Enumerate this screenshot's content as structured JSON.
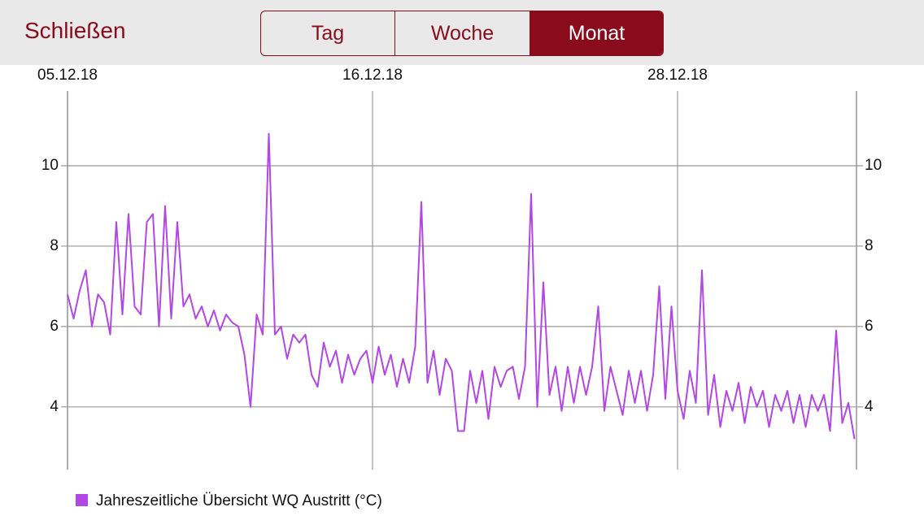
{
  "header": {
    "close": "Schließen",
    "segments": [
      "Tag",
      "Woche",
      "Monat"
    ],
    "selected": 2
  },
  "chart_data": {
    "type": "line",
    "xlim": [
      0,
      129.33
    ],
    "xticks": [
      {
        "value": 0,
        "label": "05.12.18"
      },
      {
        "value": 50,
        "label": "16.12.18"
      },
      {
        "value": 100,
        "label": "28.12.18"
      }
    ],
    "ylim": [
      2.44,
      11.86
    ],
    "yticks": [
      4,
      6,
      8,
      10
    ],
    "grid": true,
    "series": [
      {
        "name": "Jahreszeitliche Übersicht WQ Austritt (°C)",
        "color": "#b347e6",
        "values": [
          6.8,
          6.2,
          6.9,
          7.4,
          6.0,
          6.8,
          6.6,
          5.8,
          8.6,
          6.3,
          8.8,
          6.5,
          6.3,
          8.6,
          8.8,
          6.0,
          9.0,
          6.2,
          8.6,
          6.5,
          6.8,
          6.2,
          6.5,
          6.0,
          6.4,
          5.9,
          6.3,
          6.1,
          6.0,
          5.3,
          4.0,
          6.3,
          5.8,
          10.8,
          5.8,
          6.0,
          5.2,
          5.8,
          5.6,
          5.8,
          4.8,
          4.5,
          5.6,
          5.0,
          5.4,
          4.6,
          5.3,
          4.8,
          5.2,
          5.4,
          4.6,
          5.5,
          4.8,
          5.3,
          4.5,
          5.2,
          4.6,
          5.5,
          9.1,
          4.6,
          5.4,
          4.3,
          5.2,
          4.9,
          3.4,
          3.4,
          4.9,
          4.1,
          4.9,
          3.7,
          5.0,
          4.5,
          4.9,
          5.0,
          4.2,
          5.0,
          9.3,
          4.0,
          7.1,
          4.3,
          5.0,
          3.9,
          5.0,
          4.1,
          5.0,
          4.3,
          5.0,
          6.5,
          3.9,
          5.0,
          4.4,
          3.8,
          4.9,
          4.1,
          4.9,
          3.9,
          4.8,
          7.0,
          4.2,
          6.5,
          4.4,
          3.7,
          4.9,
          4.1,
          7.4,
          3.8,
          4.8,
          3.5,
          4.4,
          3.9,
          4.6,
          3.6,
          4.5,
          4.0,
          4.4,
          3.5,
          4.3,
          3.9,
          4.4,
          3.6,
          4.3,
          3.5,
          4.3,
          3.9,
          4.3,
          3.4,
          5.9,
          3.6,
          4.1,
          3.2
        ]
      }
    ]
  }
}
